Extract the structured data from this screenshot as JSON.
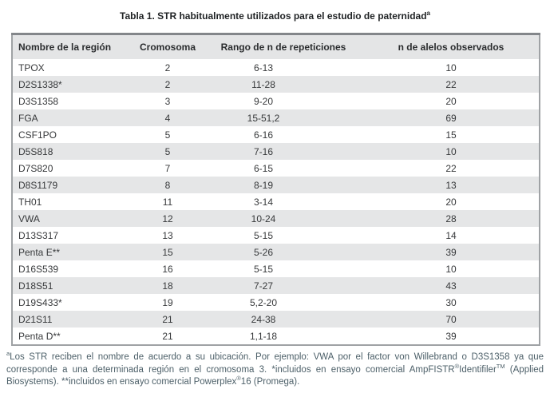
{
  "title": {
    "text": "Tabla 1. STR habitualmente utilizados para el estudio de paternidad",
    "superscript": "a"
  },
  "table": {
    "headers": [
      "Nombre de la región",
      "Cromosoma",
      "Rango de n de repeticiones",
      "n de alelos observados"
    ],
    "rows": [
      {
        "name": "TPOX",
        "chromosome": "2",
        "range": "6-13",
        "alleles": "10"
      },
      {
        "name": "D2S1338*",
        "chromosome": "2",
        "range": "11-28",
        "alleles": "22"
      },
      {
        "name": "D3S1358",
        "chromosome": "3",
        "range": "9-20",
        "alleles": "20"
      },
      {
        "name": "FGA",
        "chromosome": "4",
        "range": "15-51,2",
        "alleles": "69"
      },
      {
        "name": "CSF1PO",
        "chromosome": "5",
        "range": "6-16",
        "alleles": "15"
      },
      {
        "name": "D5S818",
        "chromosome": "5",
        "range": "7-16",
        "alleles": "10"
      },
      {
        "name": "D7S820",
        "chromosome": "7",
        "range": "6-15",
        "alleles": "22"
      },
      {
        "name": "D8S1179",
        "chromosome": "8",
        "range": "8-19",
        "alleles": "13"
      },
      {
        "name": "TH01",
        "chromosome": "11",
        "range": "3-14",
        "alleles": "20"
      },
      {
        "name": "VWA",
        "chromosome": "12",
        "range": "10-24",
        "alleles": "28"
      },
      {
        "name": "D13S317",
        "chromosome": "13",
        "range": "5-15",
        "alleles": "14"
      },
      {
        "name": "Penta E**",
        "chromosome": "15",
        "range": "5-26",
        "alleles": "39"
      },
      {
        "name": "D16S539",
        "chromosome": "16",
        "range": "5-15",
        "alleles": "10"
      },
      {
        "name": "D18S51",
        "chromosome": "18",
        "range": "7-27",
        "alleles": "43"
      },
      {
        "name": "D19S433*",
        "chromosome": "19",
        "range": "5,2-20",
        "alleles": "30"
      },
      {
        "name": "D21S11",
        "chromosome": "21",
        "range": "24-38",
        "alleles": "70"
      },
      {
        "name": "Penta D**",
        "chromosome": "21",
        "range": "1,1-18",
        "alleles": "39"
      }
    ]
  },
  "footnote": {
    "sup_a": "a",
    "part1": "Los STR reciben el nombre de acuerdo a su ubicación. Por ejemplo: VWA por el factor von Willebrand o D3S1358 ya que corresponde a una determinada región en el cromosoma 3. *incluidos en ensayo comercial AmpFISTR",
    "reg1": "®",
    "part2": "Identifiler",
    "tm": "TM",
    "part3": " (Applied Biosystems). **incluidos en ensayo comercial Powerplex",
    "reg2": "®",
    "part4": "16 (Promega)."
  },
  "colors": {
    "row_stripe": "#e5e6e7",
    "header_background": "#e4e5e6",
    "table_border": "#9fa2a5",
    "table_text": "#37393b",
    "title_text": "#1f2224",
    "footnote_text": "#4d6069"
  }
}
